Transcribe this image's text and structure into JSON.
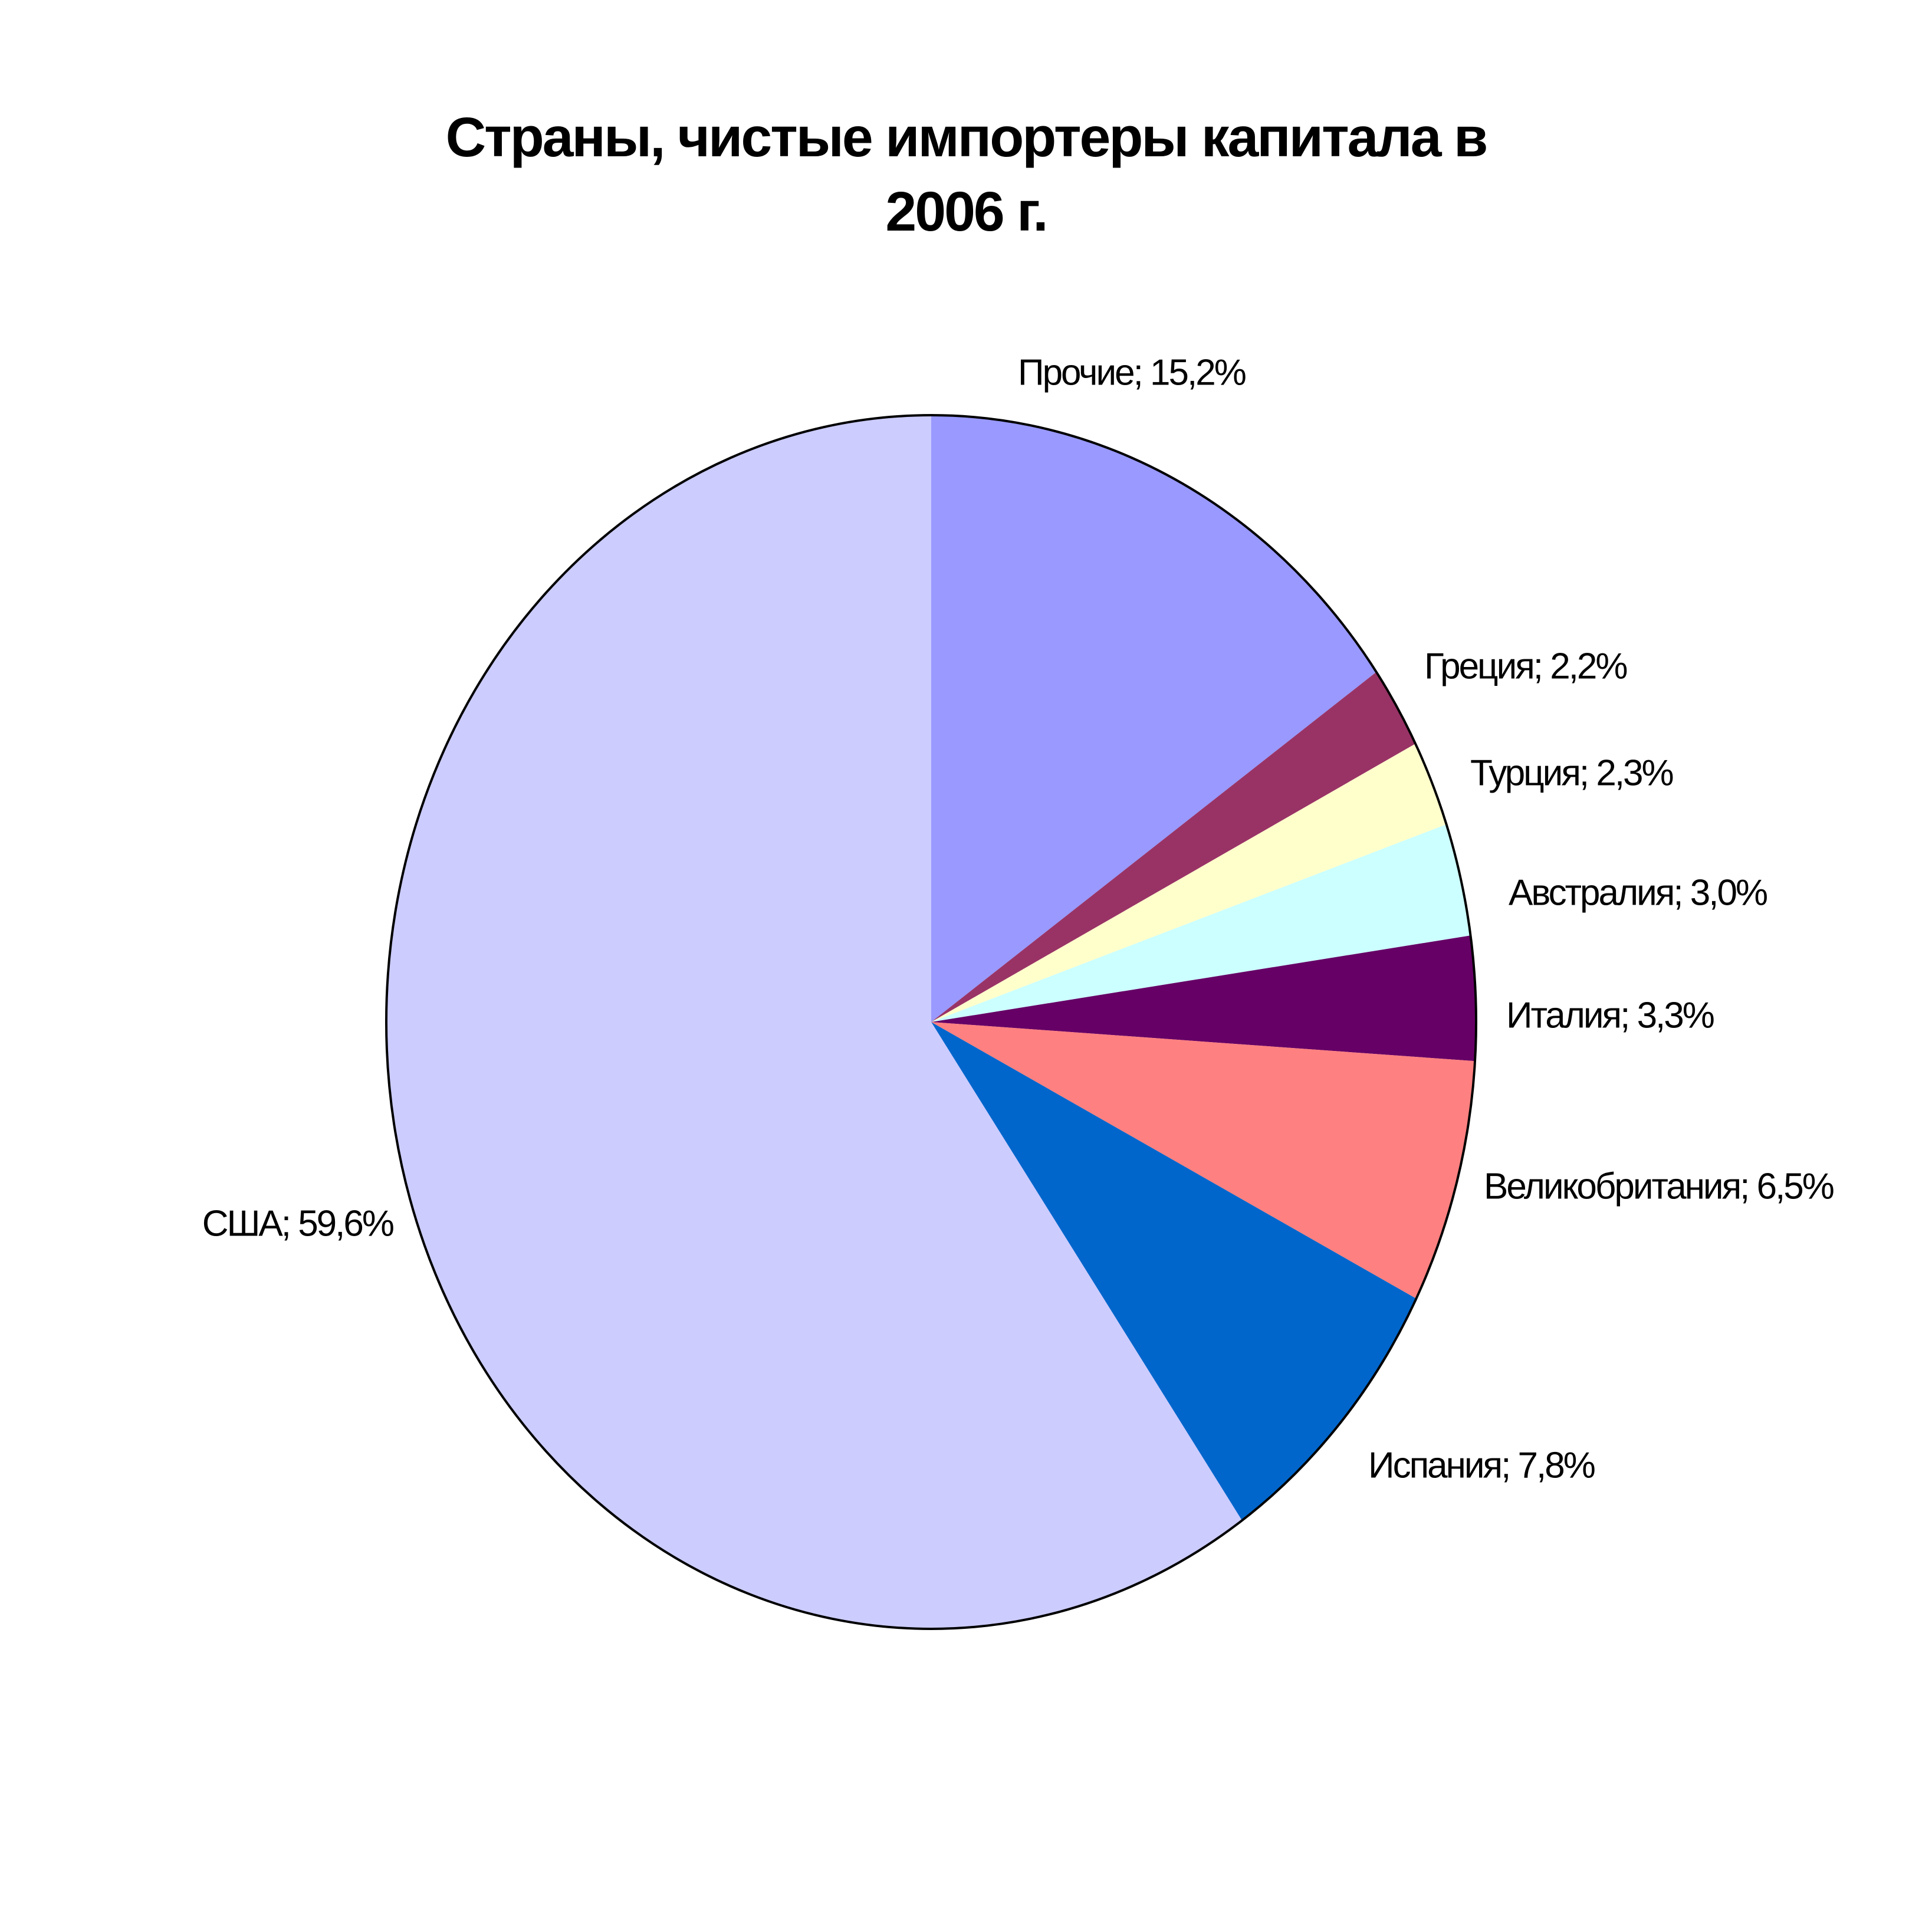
{
  "chart_data": {
    "type": "pie",
    "title": "Страны, чистые импортеры капитала в 2006 г.",
    "categories": [
      "Прочие",
      "Греция",
      "Турция",
      "Австралия",
      "Италия",
      "Великобритания",
      "Испания",
      "США"
    ],
    "values": [
      15.2,
      2.2,
      2.3,
      3.0,
      3.3,
      6.5,
      7.8,
      59.6
    ],
    "value_labels": [
      "Прочие; 15,2%",
      "Греция; 2,2%",
      "Турция; 2,3%",
      "Австралия; 3,0%",
      "Италия; 3,3%",
      "Великобритания; 6,5%",
      "Испания; 7,8%",
      "США; 59,6%"
    ],
    "colors": [
      "#9999ff",
      "#993366",
      "#ffffcc",
      "#ccffff",
      "#660066",
      "#ff8080",
      "#0066cc",
      "#ccccff"
    ]
  }
}
